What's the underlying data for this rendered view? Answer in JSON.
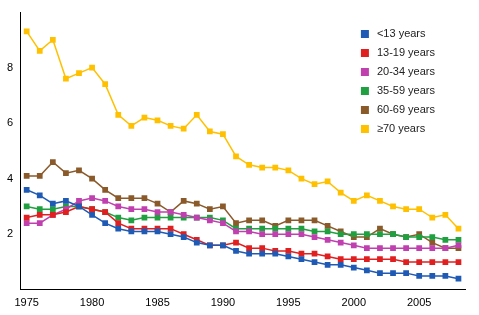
{
  "chart_data": {
    "type": "line",
    "x": [
      1975,
      1976,
      1977,
      1978,
      1979,
      1980,
      1981,
      1982,
      1983,
      1984,
      1985,
      1986,
      1987,
      1988,
      1989,
      1990,
      1991,
      1992,
      1993,
      1994,
      1995,
      1996,
      1997,
      1998,
      1999,
      2000,
      2001,
      2002,
      2003,
      2004,
      2005,
      2006,
      2007,
      2008
    ],
    "series": [
      {
        "name": "<13 years",
        "color": "#1f5bb5",
        "values": [
          3.6,
          3.4,
          3.1,
          3.2,
          3.0,
          2.7,
          2.4,
          2.2,
          2.1,
          2.1,
          2.1,
          2.0,
          1.9,
          1.7,
          1.6,
          1.6,
          1.4,
          1.3,
          1.3,
          1.3,
          1.2,
          1.1,
          1.0,
          0.9,
          0.9,
          0.8,
          0.7,
          0.6,
          0.6,
          0.6,
          0.5,
          0.5,
          0.5,
          0.4
        ]
      },
      {
        "name": "13-19 years",
        "color": "#e02020",
        "values": [
          2.6,
          2.7,
          2.7,
          2.8,
          3.0,
          2.9,
          2.8,
          2.4,
          2.2,
          2.2,
          2.2,
          2.2,
          2.0,
          1.8,
          1.6,
          1.6,
          1.7,
          1.5,
          1.5,
          1.4,
          1.4,
          1.3,
          1.3,
          1.2,
          1.1,
          1.1,
          1.1,
          1.1,
          1.1,
          1.0,
          1.0,
          1.0,
          1.0,
          1.0
        ]
      },
      {
        "name": "20-34 years",
        "color": "#c040b0",
        "values": [
          2.4,
          2.4,
          2.7,
          2.9,
          3.2,
          3.3,
          3.2,
          3.0,
          2.9,
          2.9,
          2.8,
          2.8,
          2.7,
          2.6,
          2.5,
          2.4,
          2.1,
          2.1,
          2.0,
          2.0,
          2.0,
          2.0,
          1.9,
          1.8,
          1.7,
          1.6,
          1.5,
          1.5,
          1.5,
          1.5,
          1.5,
          1.5,
          1.5,
          1.6
        ]
      },
      {
        "name": "35-59 years",
        "color": "#20a040",
        "values": [
          3.0,
          2.9,
          2.9,
          3.0,
          3.0,
          2.9,
          2.8,
          2.6,
          2.5,
          2.6,
          2.6,
          2.6,
          2.6,
          2.6,
          2.6,
          2.5,
          2.2,
          2.2,
          2.2,
          2.2,
          2.2,
          2.2,
          2.1,
          2.1,
          2.0,
          2.0,
          2.0,
          2.0,
          2.0,
          1.9,
          1.9,
          1.9,
          1.8,
          1.8
        ]
      },
      {
        "name": "60-69 years",
        "color": "#8b5a2b",
        "values": [
          4.1,
          4.1,
          4.6,
          4.2,
          4.3,
          4.0,
          3.6,
          3.3,
          3.3,
          3.3,
          3.1,
          2.8,
          3.2,
          3.1,
          2.9,
          3.0,
          2.4,
          2.5,
          2.5,
          2.3,
          2.5,
          2.5,
          2.5,
          2.3,
          2.1,
          1.9,
          1.9,
          2.2,
          2.0,
          1.9,
          2.0,
          1.7,
          1.5,
          1.5
        ]
      },
      {
        "name": "≥70 years",
        "color": "#ffc000",
        "values": [
          9.3,
          8.6,
          9.0,
          7.6,
          7.8,
          8.0,
          7.4,
          6.3,
          5.9,
          6.2,
          6.1,
          5.9,
          5.8,
          6.3,
          5.7,
          5.6,
          4.8,
          4.5,
          4.4,
          4.4,
          4.3,
          4.0,
          3.8,
          3.9,
          3.5,
          3.2,
          3.4,
          3.2,
          3.0,
          2.9,
          2.9,
          2.6,
          2.7,
          2.2
        ]
      }
    ],
    "xlim": [
      1974.5,
      2008.5
    ],
    "xticks": [
      1975,
      1980,
      1985,
      1990,
      1995,
      2000,
      2005
    ],
    "ylim": [
      0,
      10
    ],
    "yticks": [
      2,
      4,
      6,
      8
    ],
    "grid": false,
    "legend": "upper right",
    "marker": "square",
    "line_style": "solid"
  }
}
